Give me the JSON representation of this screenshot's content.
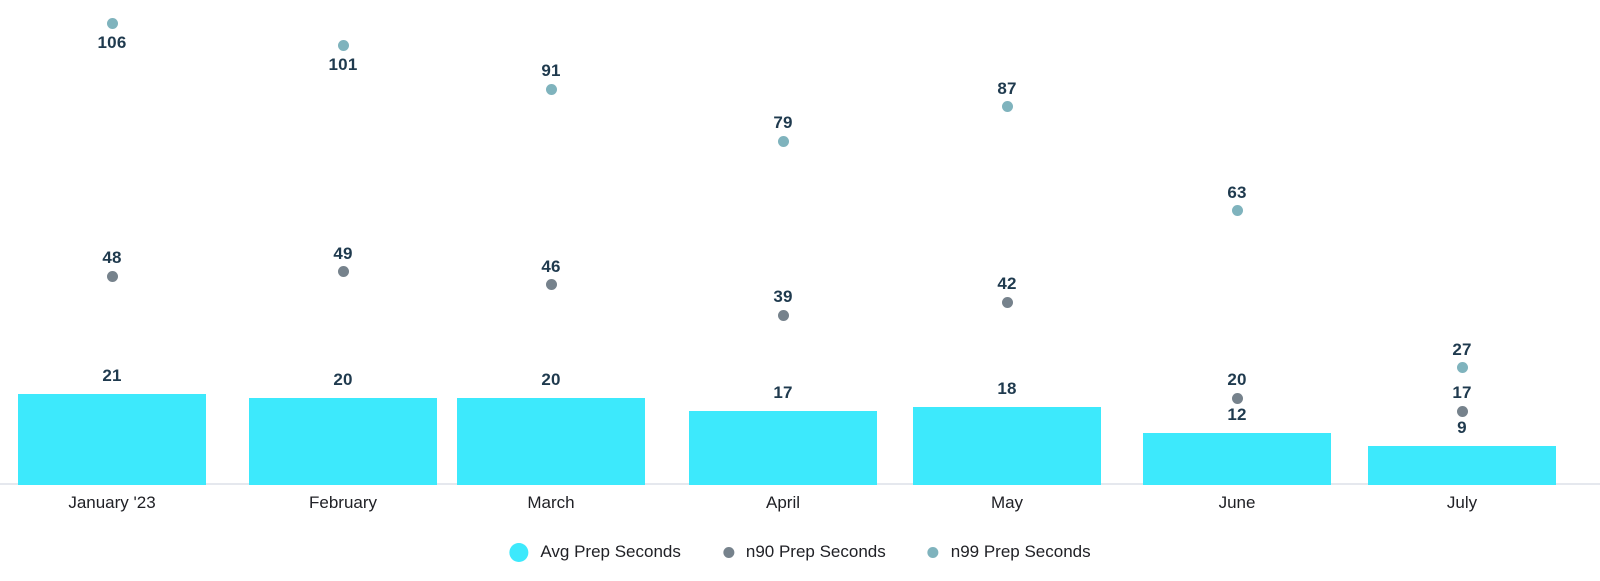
{
  "chart_data": {
    "type": "bar",
    "subtype": "combo-bar-with-scatter-points",
    "title": "",
    "xlabel": "",
    "ylabel": "",
    "categories": [
      "January '23",
      "February",
      "March",
      "April",
      "May",
      "June",
      "July"
    ],
    "series": [
      {
        "name": "Avg Prep Seconds",
        "type": "bar",
        "color": "#3DE9FC",
        "values": [
          21,
          20,
          20,
          17,
          18,
          12,
          9
        ]
      },
      {
        "name": "n90 Prep Seconds",
        "type": "scatter",
        "color": "#76828C",
        "values": [
          48,
          49,
          46,
          39,
          42,
          20,
          17
        ]
      },
      {
        "name": "n99 Prep Seconds",
        "type": "scatter",
        "color": "#7FB3BD",
        "values": [
          106,
          101,
          91,
          79,
          87,
          63,
          27
        ]
      }
    ],
    "ylim": [
      0,
      111
    ],
    "grid": false,
    "y_axis_labels_visible": false,
    "baseline_axis_color": "#E5E8EE",
    "data_labels": true,
    "data_label_color": "#1F3A4E",
    "axis_text_color": "#202126",
    "legend_position": "bottom"
  }
}
